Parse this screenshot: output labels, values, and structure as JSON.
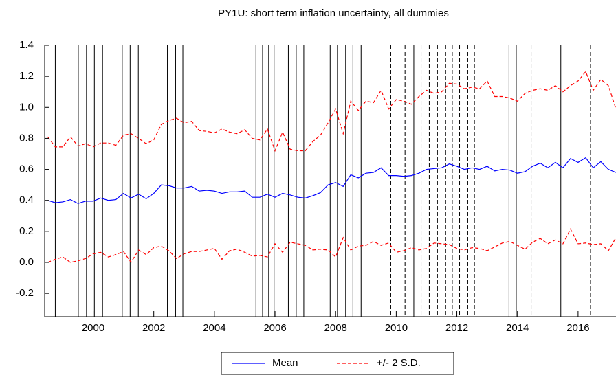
{
  "chart_data": {
    "type": "line",
    "title": "PY1U: short term inflation uncertainty, all dummies",
    "x": [
      1998.5,
      1998.75,
      1999,
      1999.25,
      1999.5,
      1999.75,
      2000,
      2000.25,
      2000.5,
      2000.75,
      2001,
      2001.25,
      2001.5,
      2001.75,
      2002,
      2002.25,
      2002.5,
      2002.75,
      2003,
      2003.25,
      2003.5,
      2003.75,
      2004,
      2004.25,
      2004.5,
      2004.75,
      2005,
      2005.25,
      2005.5,
      2005.75,
      2006,
      2006.25,
      2006.5,
      2006.75,
      2007,
      2007.25,
      2007.5,
      2007.75,
      2008,
      2008.25,
      2008.5,
      2008.75,
      2009,
      2009.25,
      2009.5,
      2009.75,
      2010,
      2010.25,
      2010.5,
      2010.75,
      2011,
      2011.25,
      2011.5,
      2011.75,
      2012,
      2012.25,
      2012.5,
      2012.75,
      2013,
      2013.25,
      2013.5,
      2013.75,
      2014,
      2014.25,
      2014.5,
      2014.75,
      2015,
      2015.25,
      2015.5,
      2015.75,
      2016,
      2016.25,
      2016.5,
      2016.75,
      2017,
      2017.25
    ],
    "series": [
      {
        "name": "Mean",
        "color": "#0000ff",
        "values": [
          0.4,
          0.385,
          0.39,
          0.405,
          0.38,
          0.395,
          0.395,
          0.415,
          0.4,
          0.405,
          0.445,
          0.415,
          0.44,
          0.41,
          0.445,
          0.5,
          0.495,
          0.48,
          0.48,
          0.49,
          0.46,
          0.465,
          0.46,
          0.445,
          0.455,
          0.455,
          0.46,
          0.42,
          0.42,
          0.44,
          0.42,
          0.445,
          0.435,
          0.42,
          0.415,
          0.43,
          0.45,
          0.5,
          0.515,
          0.49,
          0.565,
          0.545,
          0.575,
          0.58,
          0.61,
          0.56,
          0.56,
          0.555,
          0.56,
          0.575,
          0.6,
          0.605,
          0.61,
          0.635,
          0.62,
          0.6,
          0.61,
          0.6,
          0.62,
          0.59,
          0.6,
          0.595,
          0.575,
          0.585,
          0.62,
          0.64,
          0.61,
          0.645,
          0.61,
          0.67,
          0.645,
          0.675,
          0.61,
          0.65,
          0.6,
          0.58
        ]
      },
      {
        "name": "+/- 2 S.D.",
        "color": "#ff0000",
        "dashed": true,
        "upper": [
          0.81,
          0.745,
          0.745,
          0.81,
          0.75,
          0.765,
          0.745,
          0.77,
          0.77,
          0.755,
          0.82,
          0.83,
          0.8,
          0.765,
          0.79,
          0.89,
          0.915,
          0.93,
          0.9,
          0.91,
          0.85,
          0.845,
          0.835,
          0.86,
          0.84,
          0.83,
          0.855,
          0.8,
          0.79,
          0.86,
          0.72,
          0.84,
          0.73,
          0.72,
          0.72,
          0.78,
          0.82,
          0.9,
          0.99,
          0.83,
          1.04,
          0.98,
          1.04,
          1.03,
          1.11,
          0.99,
          1.05,
          1.04,
          1.02,
          1.07,
          1.11,
          1.09,
          1.1,
          1.155,
          1.15,
          1.12,
          1.13,
          1.12,
          1.17,
          1.07,
          1.07,
          1.06,
          1.04,
          1.09,
          1.11,
          1.12,
          1.11,
          1.14,
          1.1,
          1.14,
          1.17,
          1.23,
          1.11,
          1.18,
          1.14,
          0.99
        ],
        "lower": [
          0.0,
          0.02,
          0.035,
          0.0,
          0.01,
          0.025,
          0.055,
          0.065,
          0.035,
          0.05,
          0.07,
          0.0,
          0.08,
          0.05,
          0.095,
          0.105,
          0.075,
          0.025,
          0.055,
          0.07,
          0.07,
          0.08,
          0.09,
          0.02,
          0.075,
          0.085,
          0.065,
          0.04,
          0.045,
          0.035,
          0.12,
          0.065,
          0.13,
          0.12,
          0.11,
          0.08,
          0.085,
          0.08,
          0.035,
          0.16,
          0.08,
          0.105,
          0.11,
          0.135,
          0.11,
          0.125,
          0.065,
          0.075,
          0.095,
          0.08,
          0.09,
          0.125,
          0.12,
          0.115,
          0.09,
          0.08,
          0.095,
          0.09,
          0.075,
          0.1,
          0.125,
          0.135,
          0.11,
          0.085,
          0.13,
          0.155,
          0.12,
          0.145,
          0.12,
          0.215,
          0.12,
          0.125,
          0.115,
          0.12,
          0.075,
          0.16
        ]
      }
    ],
    "dummy_lines": [
      {
        "x": 1998.75,
        "style": "solid"
      },
      {
        "x": 1999.51,
        "style": "solid"
      },
      {
        "x": 1999.78,
        "style": "solid"
      },
      {
        "x": 2000.04,
        "style": "solid"
      },
      {
        "x": 2000.31,
        "style": "solid"
      },
      {
        "x": 2000.96,
        "style": "solid"
      },
      {
        "x": 2001.22,
        "style": "solid"
      },
      {
        "x": 2001.49,
        "style": "solid"
      },
      {
        "x": 2002.45,
        "style": "solid"
      },
      {
        "x": 2002.72,
        "style": "solid"
      },
      {
        "x": 2002.96,
        "style": "solid"
      },
      {
        "x": 2005.37,
        "style": "solid"
      },
      {
        "x": 2005.59,
        "style": "solid"
      },
      {
        "x": 2005.79,
        "style": "solid"
      },
      {
        "x": 2005.97,
        "style": "solid"
      },
      {
        "x": 2006.44,
        "style": "solid"
      },
      {
        "x": 2006.7,
        "style": "solid"
      },
      {
        "x": 2006.95,
        "style": "solid"
      },
      {
        "x": 2007.82,
        "style": "solid"
      },
      {
        "x": 2008.06,
        "style": "solid"
      },
      {
        "x": 2008.33,
        "style": "solid"
      },
      {
        "x": 2008.57,
        "style": "solid"
      },
      {
        "x": 2008.84,
        "style": "solid"
      },
      {
        "x": 2009.82,
        "style": "dashed"
      },
      {
        "x": 2010.29,
        "style": "dashed"
      },
      {
        "x": 2010.58,
        "style": "solid"
      },
      {
        "x": 2010.82,
        "style": "dashed"
      },
      {
        "x": 2011.09,
        "style": "dashed"
      },
      {
        "x": 2011.36,
        "style": "dashed"
      },
      {
        "x": 2011.63,
        "style": "dashed"
      },
      {
        "x": 2011.85,
        "style": "dashed"
      },
      {
        "x": 2012.09,
        "style": "dashed"
      },
      {
        "x": 2012.36,
        "style": "dashed"
      },
      {
        "x": 2012.58,
        "style": "dashed"
      },
      {
        "x": 2013.72,
        "style": "solid"
      },
      {
        "x": 2013.96,
        "style": "solid"
      },
      {
        "x": 2014.45,
        "style": "dashed"
      },
      {
        "x": 2015.43,
        "style": "solid"
      },
      {
        "x": 2016.41,
        "style": "dashed"
      }
    ],
    "xlim": [
      1998.4,
      2017.25
    ],
    "xticks": [
      2000,
      2002,
      2004,
      2006,
      2008,
      2010,
      2012,
      2014,
      2016
    ],
    "ylim": [
      -0.35,
      1.4
    ],
    "yticks": [
      {
        "value": -0.2,
        "label": "-0.2"
      },
      {
        "value": 0,
        "label": "0.0"
      },
      {
        "value": 0.2,
        "label": "0.2"
      },
      {
        "value": 0.4,
        "label": "0.4"
      },
      {
        "value": 0.6,
        "label": "0.6"
      },
      {
        "value": 0.8,
        "label": "0.8"
      },
      {
        "value": 1,
        "label": "1.0"
      },
      {
        "value": 1.2,
        "label": "1.2"
      },
      {
        "value": 1.4,
        "label": "1.4"
      }
    ],
    "legend": "bottom"
  }
}
